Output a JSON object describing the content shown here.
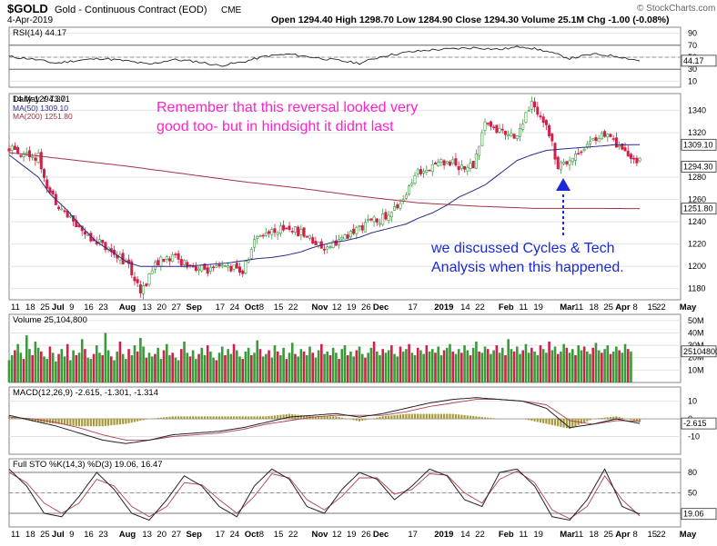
{
  "header": {
    "symbol": "$GOLD",
    "name": "Gold - Continuous Contract (EOD)",
    "exchange": "CME",
    "date": "4-Apr-2019",
    "ohlc_text": "Open 1294.40 High 1298.70 Low 1284.90 Close 1294.30 Volume 25.1M Chg -1.00 (-0.08%)",
    "watermark": "© StockCharts.com"
  },
  "colors": {
    "up": "#3a9a3a",
    "down": "#d0204a",
    "ma50": "#2b2b8c",
    "ma200": "#a83040",
    "annotation_pink": "#ff22cc",
    "annotation_blue": "#1a2ad8",
    "macd_hist": "#a89a3a",
    "signal": "#b04050"
  },
  "annotations": {
    "reversal_note_line1": "Remember that this reversal looked very",
    "reversal_note_line2": "good too-  but in hindsight it didnt last",
    "cycles_note_line1": "we discussed Cycles & Tech",
    "cycles_note_line2": "Analysis when this happened."
  },
  "xaxis": {
    "labels": [
      {
        "t": "11",
        "i": 0
      },
      {
        "t": "18",
        "i": 5
      },
      {
        "t": "25",
        "i": 10
      },
      {
        "t": "Jul",
        "i": 14,
        "bold": true
      },
      {
        "t": "9",
        "i": 20
      },
      {
        "t": "16",
        "i": 25
      },
      {
        "t": "23",
        "i": 30
      },
      {
        "t": "Aug",
        "i": 37,
        "bold": true
      },
      {
        "t": "13",
        "i": 45
      },
      {
        "t": "20",
        "i": 50
      },
      {
        "t": "27",
        "i": 55
      },
      {
        "t": "Sep",
        "i": 60,
        "bold": true
      },
      {
        "t": "17",
        "i": 70
      },
      {
        "t": "24",
        "i": 75
      },
      {
        "t": "Oct",
        "i": 80,
        "bold": true
      },
      {
        "t": "8",
        "i": 85
      },
      {
        "t": "15",
        "i": 90
      },
      {
        "t": "22",
        "i": 95
      },
      {
        "t": "Nov",
        "i": 103,
        "bold": true
      },
      {
        "t": "12",
        "i": 110
      },
      {
        "t": "19",
        "i": 115
      },
      {
        "t": "26",
        "i": 120
      },
      {
        "t": "Dec",
        "i": 124,
        "bold": true
      },
      {
        "t": "17",
        "i": 136
      },
      {
        "t": "2019",
        "i": 145,
        "bold": true
      },
      {
        "t": "14",
        "i": 154
      },
      {
        "t": "22",
        "i": 159
      },
      {
        "t": "Feb",
        "i": 167,
        "bold": true
      },
      {
        "t": "11",
        "i": 174
      },
      {
        "t": "19",
        "i": 179
      },
      {
        "t": "Mar",
        "i": 188,
        "bold": true
      },
      {
        "t": "11",
        "i": 193
      },
      {
        "t": "18",
        "i": 198
      },
      {
        "t": "25",
        "i": 203
      },
      {
        "t": "Apr",
        "i": 207,
        "bold": true
      },
      {
        "t": "8",
        "i": 213
      },
      {
        "t": "15",
        "i": 218
      },
      {
        "t": "22",
        "i": 221
      },
      {
        "t": "May",
        "i": 229,
        "bold": true
      }
    ]
  },
  "chart_data": [
    {
      "type": "line",
      "title": "RSI(14) 44.17",
      "ylim": [
        0,
        100
      ],
      "ticks": [
        90,
        70,
        50,
        30,
        10
      ],
      "ref_lines": [
        70,
        30
      ],
      "last_value_label": "44.17",
      "x": [
        0,
        8,
        16,
        24,
        32,
        40,
        48,
        56,
        64,
        72,
        80,
        88,
        96,
        104,
        112,
        120,
        128,
        136,
        144,
        152,
        160,
        168,
        176,
        184,
        192,
        200,
        208,
        216
      ],
      "values": [
        51,
        47,
        40,
        45,
        48,
        44,
        38,
        46,
        43,
        36,
        42,
        52,
        55,
        50,
        45,
        40,
        52,
        58,
        62,
        64,
        66,
        63,
        68,
        60,
        48,
        55,
        52,
        44
      ]
    },
    {
      "type": "candlestick",
      "title": "Daily 1294.30",
      "tag": "14 May Y 73.71",
      "legend": [
        "MA(50) 1309.10",
        "MA(200) 1251.80"
      ],
      "ylim": [
        1170,
        1355
      ],
      "ticks": [
        1340,
        1320,
        1280,
        1260,
        1240,
        1220,
        1200,
        1180
      ],
      "last_labels": [
        "1309.10",
        "1294.30",
        "1251.80"
      ],
      "close_x": [
        0,
        5,
        10,
        14,
        20,
        25,
        30,
        37,
        41,
        45,
        50,
        55,
        60,
        65,
        70,
        75,
        80,
        85,
        90,
        95,
        100,
        103,
        107,
        110,
        115,
        120,
        124,
        130,
        136,
        140,
        145,
        150,
        154,
        159,
        163,
        167,
        171,
        174,
        179,
        184,
        188,
        193,
        198,
        203,
        207,
        210,
        216
      ],
      "close_y": [
        1305,
        1302,
        1298,
        1266,
        1245,
        1232,
        1223,
        1211,
        1200,
        1175,
        1203,
        1208,
        1204,
        1198,
        1196,
        1200,
        1195,
        1228,
        1232,
        1235,
        1230,
        1225,
        1218,
        1220,
        1225,
        1235,
        1240,
        1245,
        1265,
        1283,
        1292,
        1295,
        1290,
        1290,
        1330,
        1322,
        1320,
        1318,
        1345,
        1330,
        1290,
        1298,
        1310,
        1318,
        1312,
        1302,
        1294
      ],
      "ma50_y": [
        1300,
        1290,
        1280,
        1265,
        1250,
        1235,
        1222,
        1210,
        1203,
        1200,
        1200,
        1200,
        1201,
        1202,
        1203,
        1205,
        1207,
        1208,
        1210,
        1213,
        1216,
        1219,
        1221,
        1223,
        1226,
        1230,
        1234,
        1238,
        1243,
        1248,
        1255,
        1262,
        1268,
        1273,
        1281,
        1289,
        1295,
        1300,
        1304,
        1305,
        1306,
        1307,
        1308,
        1309,
        1309.1
      ],
      "ma50_x": [
        0,
        5,
        10,
        14,
        20,
        25,
        30,
        37,
        41,
        45,
        55,
        60,
        65,
        70,
        75,
        80,
        85,
        90,
        95,
        100,
        103,
        107,
        110,
        115,
        120,
        124,
        130,
        136,
        140,
        145,
        150,
        154,
        159,
        163,
        167,
        171,
        174,
        179,
        184,
        188,
        193,
        198,
        203,
        207,
        216
      ],
      "ma200_x": [
        0,
        20,
        40,
        60,
        80,
        100,
        120,
        140,
        160,
        180,
        200,
        216
      ],
      "ma200_y": [
        1302,
        1296,
        1290,
        1283,
        1276,
        1270,
        1263,
        1257,
        1254,
        1252,
        1252,
        1251.8
      ]
    },
    {
      "type": "bar",
      "title": "Volume 25,104,800",
      "ylim": [
        0,
        55
      ],
      "ticks": [
        50,
        40,
        30,
        20,
        10
      ],
      "tick_labels": [
        "50M",
        "40M",
        "30M",
        "20M",
        "10M"
      ],
      "last_value_label": "25104800",
      "values": [
        18,
        22,
        26,
        31,
        24,
        19,
        38,
        27,
        22,
        33,
        28,
        25,
        21,
        19,
        29,
        24,
        17,
        23,
        27,
        21,
        31,
        18,
        26,
        22,
        24,
        35,
        27,
        20,
        19,
        23,
        30,
        24,
        22,
        40,
        26,
        21,
        18,
        25,
        33,
        23,
        19,
        27,
        22,
        30,
        25,
        36,
        29,
        20,
        24,
        21,
        23,
        28,
        19,
        26,
        31,
        22,
        24,
        20,
        18,
        27,
        33,
        24,
        21,
        26,
        19,
        23,
        28,
        22,
        30,
        25,
        20,
        18,
        24,
        29,
        22,
        27,
        23,
        31,
        26,
        21,
        19,
        25,
        28,
        22,
        24,
        34,
        27,
        21,
        23,
        26,
        20,
        30,
        25,
        22,
        28,
        19,
        24,
        32,
        23,
        21,
        27,
        25,
        22,
        29,
        24,
        20,
        26,
        31,
        23,
        25,
        22,
        28,
        24,
        19,
        27,
        30,
        22,
        25,
        21,
        26,
        29,
        23,
        20,
        24,
        28,
        33,
        25,
        22,
        27,
        24,
        26,
        30,
        23,
        21,
        29,
        25,
        27,
        31,
        24,
        22,
        28,
        26,
        23,
        30,
        25,
        27,
        24,
        29,
        22,
        26,
        28,
        31,
        25,
        23,
        27,
        24,
        30,
        26,
        22,
        28,
        33,
        25,
        24,
        29,
        27,
        23,
        26,
        30,
        24,
        28,
        22,
        35,
        27,
        25,
        29,
        23,
        26,
        31,
        24,
        28,
        25,
        22,
        30,
        27,
        24,
        33,
        26,
        29,
        23,
        25,
        31,
        28,
        24,
        27,
        22,
        30,
        26,
        29,
        25,
        23,
        28,
        32,
        26,
        24,
        27,
        30,
        23,
        25,
        29,
        26,
        24,
        31,
        27,
        25
      ],
      "up_flags_seed": 7
    },
    {
      "type": "line",
      "title": "MACD(12,26,9) -2.615, -1.301, -1.314",
      "ylim": [
        -20,
        18
      ],
      "ticks": [
        10,
        0,
        -10
      ],
      "last_value_label": "-2.615",
      "x": [
        0,
        8,
        16,
        24,
        32,
        40,
        48,
        56,
        64,
        72,
        80,
        88,
        96,
        104,
        112,
        120,
        128,
        136,
        144,
        152,
        160,
        168,
        176,
        184,
        192,
        200,
        208,
        216
      ],
      "macd": [
        2,
        -1,
        -4,
        -8,
        -12,
        -14,
        -12,
        -9,
        -8,
        -7,
        -5,
        -2,
        1,
        2,
        3,
        1,
        3,
        6,
        9,
        11,
        12,
        11,
        10,
        6,
        -5,
        -3,
        0,
        -2.6
      ],
      "signal": [
        1,
        0,
        -2,
        -5,
        -9,
        -12,
        -12,
        -10,
        -9,
        -8,
        -6,
        -3,
        -1,
        1,
        2,
        2,
        2,
        4,
        7,
        9,
        11,
        11,
        10,
        8,
        -1,
        -3,
        -1,
        -1.3
      ]
    },
    {
      "type": "line",
      "title": "Full STO %K(14,3) %D(3) 19.06, 16.47",
      "ylim": [
        0,
        100
      ],
      "ticks": [
        80,
        50,
        20
      ],
      "ref_lines": [
        80,
        20
      ],
      "last_value_label": "19.06",
      "x": [
        0,
        6,
        12,
        18,
        24,
        30,
        36,
        42,
        48,
        54,
        60,
        66,
        72,
        78,
        84,
        90,
        96,
        102,
        108,
        114,
        120,
        126,
        132,
        138,
        144,
        150,
        156,
        162,
        168,
        174,
        180,
        186,
        192,
        198,
        204,
        210,
        216
      ],
      "k": [
        85,
        60,
        20,
        15,
        45,
        80,
        55,
        20,
        10,
        40,
        75,
        60,
        30,
        15,
        60,
        85,
        70,
        30,
        20,
        55,
        80,
        70,
        40,
        60,
        85,
        75,
        40,
        30,
        80,
        85,
        60,
        15,
        10,
        40,
        85,
        30,
        19
      ],
      "d": [
        80,
        65,
        35,
        20,
        35,
        70,
        60,
        30,
        15,
        30,
        65,
        62,
        40,
        20,
        45,
        78,
        72,
        40,
        25,
        45,
        72,
        72,
        48,
        55,
        78,
        76,
        50,
        35,
        70,
        82,
        65,
        25,
        12,
        30,
        75,
        40,
        16
      ]
    }
  ]
}
